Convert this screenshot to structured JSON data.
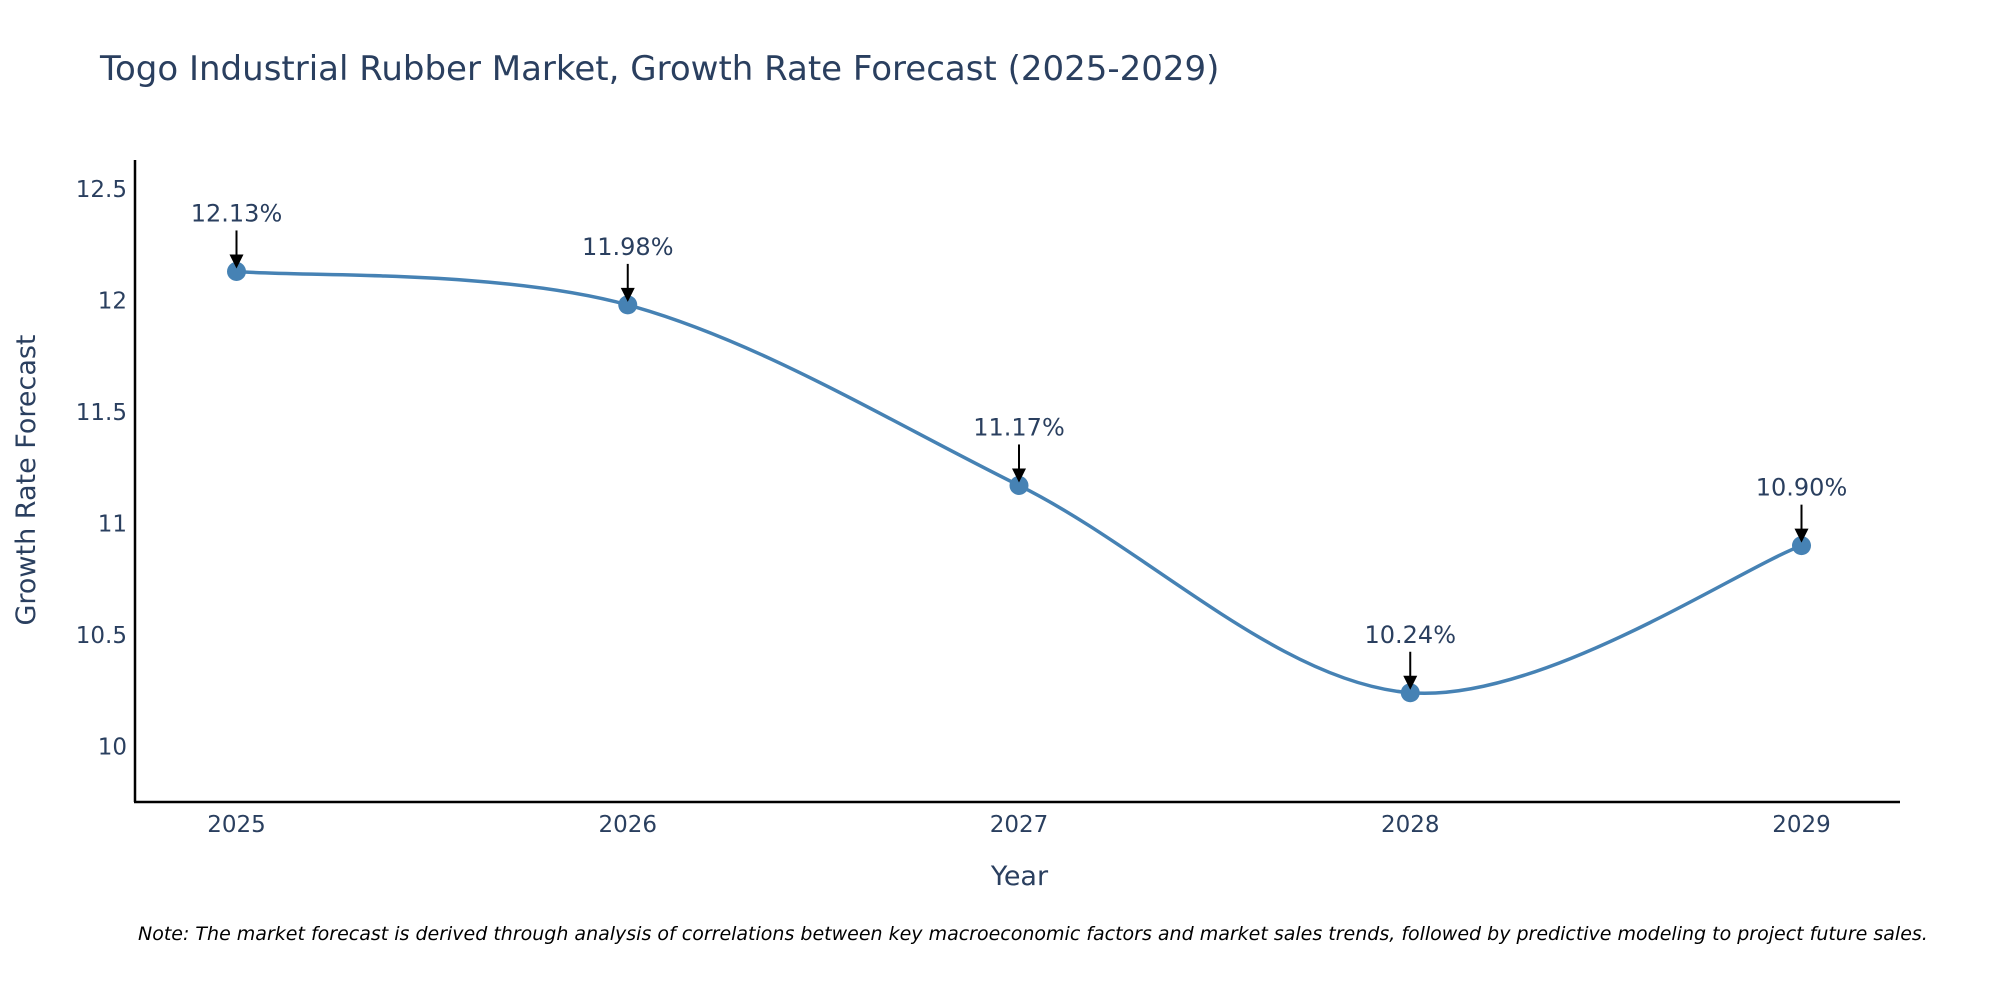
{
  "chart_data": {
    "type": "line",
    "title": "Togo Industrial Rubber Market, Growth Rate Forecast (2025-2029)",
    "xlabel": "Year",
    "ylabel": "Growth Rate Forecast",
    "categories": [
      "2025",
      "2026",
      "2027",
      "2028",
      "2029"
    ],
    "series": [
      {
        "name": "Growth Rate Forecast",
        "values": [
          12.13,
          11.98,
          11.17,
          10.24,
          10.9
        ],
        "labels": [
          "12.13%",
          "11.98%",
          "11.17%",
          "10.24%",
          "10.90%"
        ]
      }
    ],
    "ylim": [
      9.75,
      12.63
    ],
    "yticks": [
      10,
      10.5,
      11,
      11.5,
      12,
      12.5
    ],
    "ytick_labels": [
      "10",
      "10.5",
      "11",
      "11.5",
      "12",
      "12.5"
    ],
    "grid": false,
    "line_shape": "spline"
  },
  "note": "Note: The market forecast is derived through analysis of correlations between key macroeconomic factors and market sales trends, followed by predictive modeling to project future sales.",
  "colors": {
    "line": "#4682B4",
    "text": "#2A3F5F",
    "axis": "#000000",
    "annotation_arrow": "#000000"
  }
}
